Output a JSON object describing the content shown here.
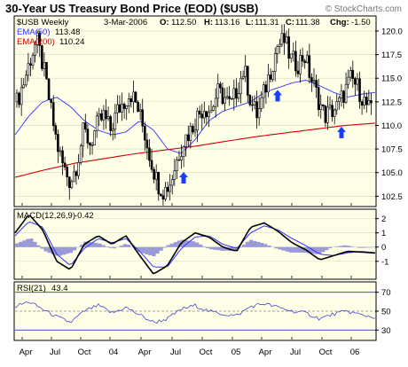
{
  "header": {
    "title": "30-Year US Treasury Bond Price (EOD) ($USB)",
    "copyright": "© StockCharts.com",
    "symbol": "$USB Weekly",
    "date": "3-Mar-2006",
    "quote": {
      "open": "112.50",
      "high": "113.16",
      "low": "111.31",
      "close": "111.38",
      "chg": "-1.50"
    },
    "quote_labels": {
      "open": "O:",
      "high": "H:",
      "low": "L:",
      "close": "C:",
      "chg": "Chg:"
    }
  },
  "colors": {
    "background": "#ffffff",
    "panel": "#ffffe8",
    "ema50": "#3333ff",
    "ema200": "#cc0000",
    "arrow": "#1a3cff",
    "macd_line": "#000000",
    "signal_line": "#3333ff",
    "histogram": "#9a9ad8",
    "rsi": "#4444cc"
  },
  "chart_data": [
    {
      "type": "candlestick",
      "title": "30-Year US Treasury Bond Price (EOD) ($USB)",
      "ylim": [
        101.5,
        121.5
      ],
      "y_ticks": [
        102.5,
        105.0,
        107.5,
        110.0,
        112.5,
        115.0,
        117.5,
        120.0
      ],
      "x_labels": [
        "Apr",
        "Jul",
        "Oct",
        "04",
        "Apr",
        "Jul",
        "Oct",
        "05",
        "Apr",
        "Jul",
        "Oct",
        "06"
      ],
      "legend": [
        {
          "name": "EMA(50)",
          "value": "113.48",
          "color": "#3333ff"
        },
        {
          "name": "EMA(200)",
          "value": "110.24",
          "color": "#cc0000"
        }
      ],
      "anchors_close": [
        112.5,
        114.5,
        117.0,
        119.0,
        116.0,
        112.0,
        108.0,
        105.5,
        104.0,
        106.0,
        109.5,
        108.0,
        110.0,
        111.0,
        109.5,
        111.5,
        112.5,
        113.5,
        112.0,
        109.5,
        106.5,
        104.0,
        103.0,
        104.0,
        106.5,
        108.5,
        109.5,
        111.0,
        112.0,
        111.5,
        113.5,
        113.0,
        112.0,
        114.0,
        116.0,
        112.5,
        111.0,
        113.5,
        116.0,
        118.5,
        119.0,
        117.0,
        116.5,
        117.5,
        115.0,
        113.0,
        111.0,
        111.5,
        112.0,
        113.5,
        115.0,
        114.0,
        112.5,
        111.4
      ],
      "ema50_anchors": [
        109.0,
        111.0,
        112.5,
        113.0,
        112.0,
        110.5,
        109.5,
        109.0,
        109.3,
        110.5,
        109.5,
        107.5,
        107.0,
        108.5,
        110.5,
        111.5,
        112.0,
        112.5,
        113.5,
        114.0,
        114.5,
        114.8,
        114.2,
        113.5,
        113.0,
        113.3,
        113.5
      ],
      "ema200_anchors": [
        104.5,
        105.3,
        106.0,
        106.5,
        107.0,
        107.4,
        107.8,
        108.3,
        108.8,
        109.2,
        109.6,
        110.0,
        110.24
      ],
      "buy_arrows": [
        {
          "x_category": "Jul 04",
          "value": 104.5
        },
        {
          "x_category": "Jun 05",
          "value": 113.2
        },
        {
          "x_category": "Dec 05",
          "value": 109.3
        }
      ]
    },
    {
      "type": "line",
      "title": "MACD(12,26,9)",
      "value_label": "-0.42",
      "ylim": [
        -2.2,
        2.6
      ],
      "y_ticks": [
        2,
        1,
        0,
        -1
      ],
      "series": [
        {
          "name": "MACD",
          "values": [
            1.0,
            2.3,
            1.2,
            -1.0,
            -1.6,
            0.2,
            0.8,
            0.2,
            0.8,
            -0.6,
            -1.9,
            -1.3,
            0.3,
            1.0,
            0.7,
            0.0,
            -0.3,
            1.4,
            1.7,
            1.1,
            0.3,
            -0.2,
            -0.9,
            -0.6,
            -0.3,
            -0.35,
            -0.42
          ]
        },
        {
          "name": "Signal",
          "values": [
            0.8,
            1.8,
            1.4,
            -0.5,
            -1.3,
            -0.1,
            0.6,
            0.3,
            0.6,
            -0.3,
            -1.4,
            -1.4,
            -0.1,
            0.7,
            0.8,
            0.2,
            -0.1,
            1.0,
            1.5,
            1.2,
            0.6,
            0.1,
            -0.5,
            -0.6,
            -0.4,
            -0.3,
            -0.4
          ]
        }
      ]
    },
    {
      "type": "line",
      "title": "RSI(21)",
      "value_label": "43.4",
      "ylim": [
        20,
        80
      ],
      "y_ticks": [
        70,
        50,
        30
      ],
      "series": [
        {
          "name": "RSI",
          "values": [
            55,
            60,
            52,
            44,
            38,
            50,
            56,
            48,
            54,
            46,
            38,
            42,
            52,
            56,
            50,
            47,
            45,
            55,
            58,
            54,
            50,
            48,
            42,
            47,
            50,
            46,
            43.4
          ]
        }
      ]
    }
  ]
}
